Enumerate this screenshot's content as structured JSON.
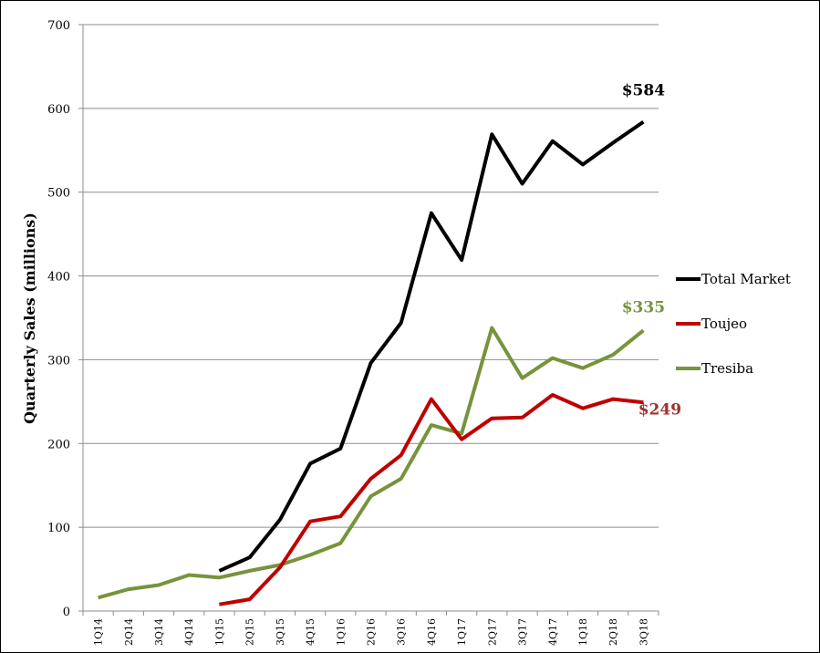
{
  "chart_data": {
    "type": "line",
    "title": "",
    "xlabel": "",
    "ylabel": "Quarterly Sales (millions)",
    "ylim": [
      0,
      700
    ],
    "yticks": [
      0,
      100,
      200,
      300,
      400,
      500,
      600,
      700
    ],
    "grid": true,
    "legend_position": "right",
    "categories": [
      "1Q14",
      "2Q14",
      "3Q14",
      "4Q14",
      "1Q15",
      "2Q15",
      "3Q15",
      "4Q15",
      "1Q16",
      "2Q16",
      "3Q16",
      "4Q16",
      "1Q17",
      "2Q17",
      "3Q17",
      "4Q17",
      "1Q18",
      "2Q18",
      "3Q18"
    ],
    "series": [
      {
        "name": "Total Market",
        "color": "#000000",
        "values": [
          null,
          null,
          null,
          null,
          48,
          64,
          109,
          176,
          194,
          296,
          344,
          475,
          419,
          569,
          510,
          561,
          533,
          559,
          584
        ]
      },
      {
        "name": "Toujeo",
        "color": "#c00000",
        "values": [
          null,
          null,
          null,
          null,
          8,
          14,
          52,
          107,
          113,
          158,
          186,
          253,
          205,
          230,
          231,
          258,
          242,
          253,
          249
        ]
      },
      {
        "name": "Tresiba",
        "color": "#77933c",
        "values": [
          16,
          26,
          31,
          43,
          40,
          48,
          55,
          67,
          81,
          137,
          158,
          222,
          212,
          338,
          278,
          302,
          290,
          306,
          335
        ]
      }
    ],
    "annotations": [
      {
        "text": "$584",
        "series": "Total Market",
        "color": "#000000"
      },
      {
        "text": "$335",
        "series": "Tresiba",
        "color": "#77933c"
      },
      {
        "text": "$249",
        "series": "Toujeo",
        "color": "#a0322d"
      }
    ]
  }
}
